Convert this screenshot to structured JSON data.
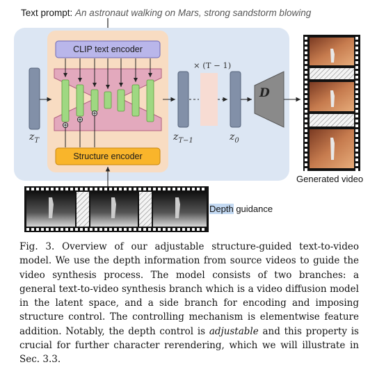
{
  "prompt": {
    "label": "Text prompt:",
    "text": "An astronaut walking on Mars, strong sandstorm blowing"
  },
  "blocks": {
    "clip_encoder": "CLIP text encoder",
    "structure_encoder": "Structure encoder",
    "decoder": "D"
  },
  "latents": {
    "z_t": "z",
    "z_t_sub": "T",
    "z_t1": "z",
    "z_t1_sub": "T−1",
    "z_0": "z",
    "z_0_sub": "0",
    "repeat": "× (T − 1)"
  },
  "labels": {
    "generated_video": "Generated video",
    "depth_word": "Depth",
    "guidance_word": " guidance"
  },
  "caption": {
    "part1": "Fig. 3. Overview of our adjustable structure-guided text-to-video model. We use the depth information from source videos to guide the video synthesis process. The model consists of two branches: a general text-to-video synthesis branch which is a video diffusion model in the latent space, and a side branch for encoding and imposing structure control. The controlling mechanism is elementwise feature addition. Notably, the depth control is ",
    "emph": "adjustable",
    "part2": " and this property is crucial for further character rerendering, which we will illustrate in Sec. 3.3."
  },
  "colors": {
    "panel_bg": "#dce6f3",
    "inner_bg": "#f8dcc2",
    "clip_box": "#b9b6ea",
    "structure_box": "#f9b52b",
    "unet_bg": "#e3a9bd",
    "unet_block": "#9fd882",
    "latent_bar": "#8290a8",
    "repeat_bar": "#f7dcd3",
    "decoder": "#8a8a8a"
  }
}
